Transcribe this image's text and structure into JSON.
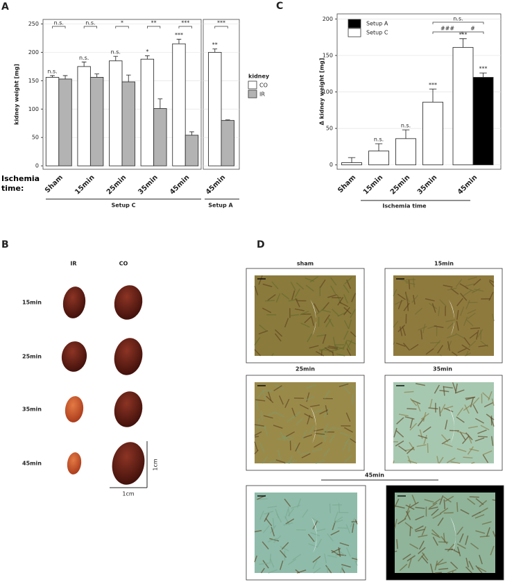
{
  "panel_labels": [
    "A",
    "B",
    "C",
    "D"
  ],
  "chart_data": [
    {
      "type": "bar",
      "ylabel": "kidney weight [mg]",
      "xlabel": "Ischemia time:",
      "categories": [
        "Sham",
        "15min",
        "25min",
        "35min",
        "45min",
        "45min"
      ],
      "group_labels": [
        "Setup C",
        "Setup A"
      ],
      "legend_title": "kidney",
      "series": [
        {
          "name": "CO",
          "color": "#ffffff",
          "values": [
            156,
            175,
            185,
            188,
            215,
            200
          ],
          "errors": [
            3,
            8,
            8,
            6,
            8,
            6
          ],
          "annotations": [
            "n.s.",
            "n.s.",
            "n.s.",
            "*",
            "***",
            "**"
          ]
        },
        {
          "name": "IR",
          "color": "#b3b3b3",
          "values": [
            153,
            156,
            148,
            101,
            54,
            80
          ],
          "errors": [
            6,
            6,
            12,
            17,
            6,
            1
          ],
          "annotations": [
            null,
            null,
            null,
            null,
            null,
            null
          ]
        }
      ],
      "comparison_labels": [
        "n.s.",
        "n.s.",
        "*",
        "**",
        "***",
        "***"
      ],
      "ylim": [
        -6,
        258
      ],
      "yticks": [
        0,
        50,
        100,
        150,
        200,
        250
      ],
      "grid": true,
      "legend": "right"
    },
    {
      "type": "bar",
      "ylabel": "Δ kidney weight [mg]",
      "xlabel": "Ischemia time",
      "categories": [
        "Sham",
        "15min",
        "25min",
        "35min",
        "45min"
      ],
      "series": [
        {
          "name": "Setup A",
          "color": "#000000",
          "values": [
            null,
            null,
            null,
            null,
            120
          ],
          "errors": [
            null,
            null,
            null,
            null,
            6
          ],
          "annotations": [
            null,
            null,
            null,
            null,
            "***"
          ]
        },
        {
          "name": "Setup C",
          "color": "#ffffff",
          "values": [
            3,
            19,
            36,
            86,
            161
          ],
          "errors": [
            7,
            10,
            12,
            18,
            12
          ],
          "annotations": [
            null,
            "n.s.",
            "n.s.",
            "***",
            "***"
          ]
        }
      ],
      "comparison_labels": [
        "n.s.",
        "###",
        "#"
      ],
      "ylim": [
        -6,
        207
      ],
      "yticks": [
        0,
        50,
        100,
        150,
        200
      ],
      "grid": true,
      "legend": "top-left"
    }
  ],
  "panel_b": {
    "columns": [
      "IR",
      "CO"
    ],
    "rows": [
      "15min",
      "25min",
      "35min",
      "45min"
    ],
    "scale_labels": [
      "1cm",
      "1cm"
    ]
  },
  "panel_d": {
    "titles": [
      "sham",
      "15min",
      "25min",
      "35min",
      "45min"
    ]
  }
}
